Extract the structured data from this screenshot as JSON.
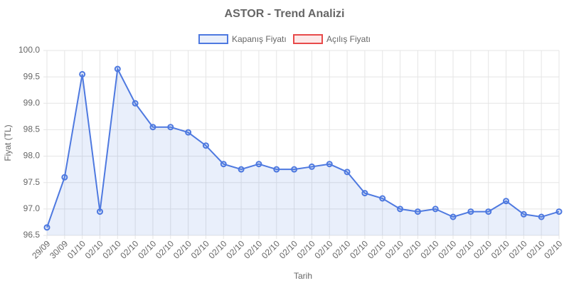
{
  "chart_data": {
    "type": "line",
    "title": "ASTOR - Trend Analizi",
    "x_label": "Tarih",
    "y_label": "Fiyat (TL)",
    "categories": [
      "29/09",
      "30/09",
      "01/10",
      "02/10",
      "02/10",
      "02/10",
      "02/10",
      "02/10",
      "02/10",
      "02/10",
      "02/10",
      "02/10",
      "02/10",
      "02/10",
      "02/10",
      "02/10",
      "02/10",
      "02/10",
      "02/10",
      "02/10",
      "02/10",
      "02/10",
      "02/10",
      "02/10",
      "02/10",
      "02/10",
      "02/10",
      "02/10",
      "02/10",
      "02/10"
    ],
    "series": [
      {
        "name": "Kapanış Fiyatı",
        "color": "#4e79e0",
        "fill": "rgba(78,121,224,0.12)",
        "values": [
          96.65,
          97.6,
          99.55,
          96.95,
          99.65,
          99.0,
          98.55,
          98.55,
          98.45,
          98.2,
          97.85,
          97.75,
          97.85,
          97.75,
          97.75,
          97.8,
          97.85,
          97.7,
          97.3,
          97.2,
          97.0,
          96.95,
          97.0,
          96.85,
          96.95,
          96.95,
          97.15,
          96.9,
          96.85,
          96.95
        ]
      },
      {
        "name": "Açılış Fiyatı",
        "color": "#e84a4a",
        "fill": "rgba(232,74,74,0.12)",
        "values": [
          null,
          null,
          null,
          null,
          null,
          null,
          null,
          null,
          null,
          null,
          null,
          null,
          null,
          null,
          null,
          null,
          null,
          null,
          null,
          null,
          null,
          null,
          null,
          null,
          null,
          null,
          null,
          null,
          null,
          null
        ]
      }
    ],
    "ylim": [
      96.5,
      100
    ],
    "yticks": [
      96.5,
      {
        "value": 97,
        "label": "97.0"
      },
      97.5,
      {
        "value": 98,
        "label": "98.0"
      },
      98.5,
      {
        "value": 99,
        "label": "99.0"
      },
      99.5,
      {
        "value": 100,
        "label": "100.0"
      }
    ],
    "grid": true,
    "legend": "top"
  }
}
